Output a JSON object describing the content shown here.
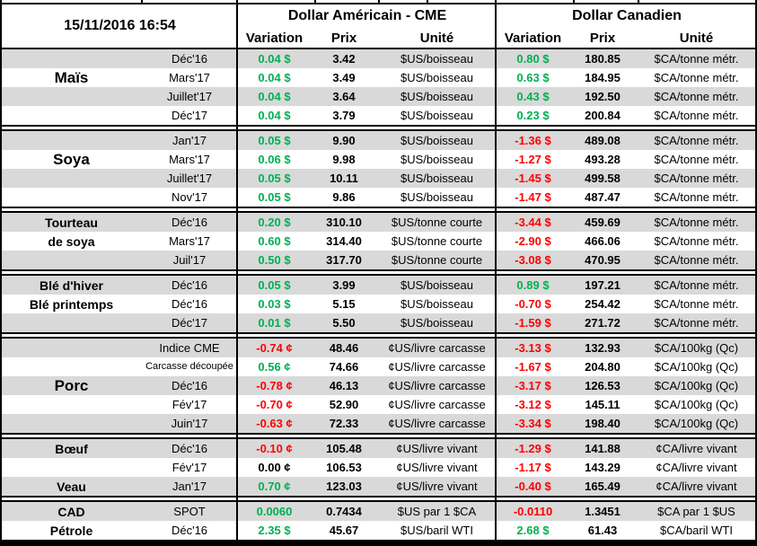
{
  "header": {
    "timestamp": "15/11/2016 16:54",
    "group_us": "Dollar Américain - CME",
    "group_ca": "Dollar Canadien",
    "cols": {
      "variation": "Variation",
      "prix": "Prix",
      "unite": "Unité"
    }
  },
  "colors": {
    "up": "#00b050",
    "down": "#ff0000",
    "flat": "#000000",
    "band": "#d9d9d9"
  },
  "sections": [
    {
      "rows": [
        {
          "label": "",
          "month": "Déc'16",
          "us": {
            "var": "0.04 $",
            "trend": "up",
            "prix": "3.42",
            "unit": "$US/boisseau"
          },
          "ca": {
            "var": "0.80 $",
            "trend": "up",
            "prix": "180.85",
            "unit": "$CA/tonne métr."
          }
        },
        {
          "label": "Maïs",
          "label_size": "lg",
          "month": "Mars'17",
          "us": {
            "var": "0.04 $",
            "trend": "up",
            "prix": "3.49",
            "unit": "$US/boisseau"
          },
          "ca": {
            "var": "0.63 $",
            "trend": "up",
            "prix": "184.95",
            "unit": "$CA/tonne métr."
          }
        },
        {
          "label": "",
          "month": "Juillet'17",
          "us": {
            "var": "0.04 $",
            "trend": "up",
            "prix": "3.64",
            "unit": "$US/boisseau"
          },
          "ca": {
            "var": "0.43 $",
            "trend": "up",
            "prix": "192.50",
            "unit": "$CA/tonne métr."
          }
        },
        {
          "label": "",
          "month": "Déc'17",
          "us": {
            "var": "0.04 $",
            "trend": "up",
            "prix": "3.79",
            "unit": "$US/boisseau"
          },
          "ca": {
            "var": "0.23 $",
            "trend": "up",
            "prix": "200.84",
            "unit": "$CA/tonne métr."
          }
        }
      ]
    },
    {
      "rows": [
        {
          "label": "",
          "month": "Jan'17",
          "us": {
            "var": "0.05 $",
            "trend": "up",
            "prix": "9.90",
            "unit": "$US/boisseau"
          },
          "ca": {
            "var": "-1.36 $",
            "trend": "down",
            "prix": "489.08",
            "unit": "$CA/tonne métr."
          }
        },
        {
          "label": "Soya",
          "label_size": "lg",
          "month": "Mars'17",
          "us": {
            "var": "0.06 $",
            "trend": "up",
            "prix": "9.98",
            "unit": "$US/boisseau"
          },
          "ca": {
            "var": "-1.27 $",
            "trend": "down",
            "prix": "493.28",
            "unit": "$CA/tonne métr."
          }
        },
        {
          "label": "",
          "month": "Juillet'17",
          "us": {
            "var": "0.05 $",
            "trend": "up",
            "prix": "10.11",
            "unit": "$US/boisseau"
          },
          "ca": {
            "var": "-1.45 $",
            "trend": "down",
            "prix": "499.58",
            "unit": "$CA/tonne métr."
          }
        },
        {
          "label": "",
          "month": "Nov'17",
          "us": {
            "var": "0.05 $",
            "trend": "up",
            "prix": "9.86",
            "unit": "$US/boisseau"
          },
          "ca": {
            "var": "-1.47 $",
            "trend": "down",
            "prix": "487.47",
            "unit": "$CA/tonne métr."
          }
        }
      ]
    },
    {
      "rows": [
        {
          "label": "Tourteau",
          "label_size": "md",
          "month": "Déc'16",
          "us": {
            "var": "0.20 $",
            "trend": "up",
            "prix": "310.10",
            "unit": "$US/tonne courte"
          },
          "ca": {
            "var": "-3.44 $",
            "trend": "down",
            "prix": "459.69",
            "unit": "$CA/tonne métr."
          }
        },
        {
          "label": "de soya",
          "label_size": "md",
          "month": "Mars'17",
          "us": {
            "var": "0.60 $",
            "trend": "up",
            "prix": "314.40",
            "unit": "$US/tonne courte"
          },
          "ca": {
            "var": "-2.90 $",
            "trend": "down",
            "prix": "466.06",
            "unit": "$CA/tonne métr."
          }
        },
        {
          "label": "",
          "month": "Juil'17",
          "us": {
            "var": "0.50 $",
            "trend": "up",
            "prix": "317.70",
            "unit": "$US/tonne courte"
          },
          "ca": {
            "var": "-3.08 $",
            "trend": "down",
            "prix": "470.95",
            "unit": "$CA/tonne métr."
          }
        }
      ]
    },
    {
      "rows": [
        {
          "label": "Blé d'hiver",
          "label_size": "md",
          "month": "Déc'16",
          "us": {
            "var": "0.05 $",
            "trend": "up",
            "prix": "3.99",
            "unit": "$US/boisseau"
          },
          "ca": {
            "var": "0.89 $",
            "trend": "up",
            "prix": "197.21",
            "unit": "$CA/tonne métr."
          }
        },
        {
          "label": "Blé printemps",
          "label_size": "md",
          "month": "Déc'16",
          "us": {
            "var": "0.03 $",
            "trend": "up",
            "prix": "5.15",
            "unit": "$US/boisseau"
          },
          "ca": {
            "var": "-0.70 $",
            "trend": "down",
            "prix": "254.42",
            "unit": "$CA/tonne métr."
          }
        },
        {
          "label": "",
          "month": "Déc'17",
          "us": {
            "var": "0.01 $",
            "trend": "up",
            "prix": "5.50",
            "unit": "$US/boisseau"
          },
          "ca": {
            "var": "-1.59 $",
            "trend": "down",
            "prix": "271.72",
            "unit": "$CA/tonne métr."
          }
        }
      ]
    },
    {
      "rows": [
        {
          "label": "",
          "month": "Indice CME",
          "us": {
            "var": "-0.74 ¢",
            "trend": "down",
            "prix": "48.46",
            "unit": "¢US/livre carcasse"
          },
          "ca": {
            "var": "-3.13 $",
            "trend": "down",
            "prix": "132.93",
            "unit": "$CA/100kg (Qc)"
          }
        },
        {
          "label": "",
          "month": "Carcasse découpée",
          "month_size": "sm",
          "us": {
            "var": "0.56 ¢",
            "trend": "up",
            "prix": "74.66",
            "unit": "¢US/livre carcasse"
          },
          "ca": {
            "var": "-1.67 $",
            "trend": "down",
            "prix": "204.80",
            "unit": "$CA/100kg (Qc)"
          }
        },
        {
          "label": "Porc",
          "label_size": "lg",
          "month": "Déc'16",
          "us": {
            "var": "-0.78 ¢",
            "trend": "down",
            "prix": "46.13",
            "unit": "¢US/livre carcasse"
          },
          "ca": {
            "var": "-3.17 $",
            "trend": "down",
            "prix": "126.53",
            "unit": "$CA/100kg (Qc)"
          }
        },
        {
          "label": "",
          "month": "Fév'17",
          "us": {
            "var": "-0.70 ¢",
            "trend": "down",
            "prix": "52.90",
            "unit": "¢US/livre carcasse"
          },
          "ca": {
            "var": "-3.12 $",
            "trend": "down",
            "prix": "145.11",
            "unit": "$CA/100kg (Qc)"
          }
        },
        {
          "label": "",
          "month": "Juin'17",
          "us": {
            "var": "-0.63 ¢",
            "trend": "down",
            "prix": "72.33",
            "unit": "¢US/livre carcasse"
          },
          "ca": {
            "var": "-3.34 $",
            "trend": "down",
            "prix": "198.40",
            "unit": "$CA/100kg (Qc)"
          }
        }
      ]
    },
    {
      "rows": [
        {
          "label": "Bœuf",
          "label_size": "md",
          "month": "Déc'16",
          "us": {
            "var": "-0.10 ¢",
            "trend": "down",
            "prix": "105.48",
            "unit": "¢US/livre vivant"
          },
          "ca": {
            "var": "-1.29 $",
            "trend": "down",
            "prix": "141.88",
            "unit": "¢CA/livre vivant"
          }
        },
        {
          "label": "",
          "month": "Fév'17",
          "us": {
            "var": "0.00 ¢",
            "trend": "flat",
            "prix": "106.53",
            "unit": "¢US/livre vivant"
          },
          "ca": {
            "var": "-1.17 $",
            "trend": "down",
            "prix": "143.29",
            "unit": "¢CA/livre vivant"
          }
        },
        {
          "label": "Veau",
          "label_size": "md",
          "month": "Jan'17",
          "us": {
            "var": "0.70 ¢",
            "trend": "up",
            "prix": "123.03",
            "unit": "¢US/livre vivant"
          },
          "ca": {
            "var": "-0.40 $",
            "trend": "down",
            "prix": "165.49",
            "unit": "¢CA/livre vivant"
          }
        }
      ]
    },
    {
      "rows": [
        {
          "label": "CAD",
          "label_size": "md",
          "month": "SPOT",
          "us": {
            "var": "0.0060",
            "trend": "up",
            "prix": "0.7434",
            "unit": "$US par 1 $CA"
          },
          "ca": {
            "var": "-0.0110",
            "trend": "down",
            "prix": "1.3451",
            "unit": "$CA par 1 $US"
          }
        },
        {
          "label": "Pétrole",
          "label_size": "md",
          "month": "Déc'16",
          "us": {
            "var": "2.35 $",
            "trend": "up",
            "prix": "45.67",
            "unit": "$US/baril WTI"
          },
          "ca": {
            "var": "2.68 $",
            "trend": "up",
            "prix": "61.43",
            "unit": "$CA/baril WTI"
          }
        }
      ]
    }
  ]
}
